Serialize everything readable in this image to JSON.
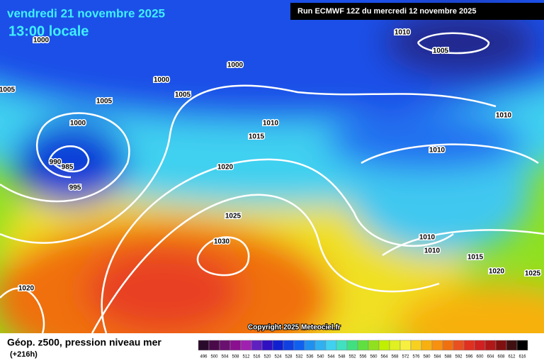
{
  "header": {
    "date": "vendredi 21 novembre 2025",
    "time": "13:00 locale",
    "run": "Run ECMWF 12Z du mercredi 12 novembre 2025"
  },
  "copyright": "Copyright 2025 Meteociel.fr",
  "footer": {
    "title": "Géop. z500, pression niveau mer",
    "subtitle": "(+216h)"
  },
  "isobars": {
    "labels": [
      "1010",
      "1005",
      "1000",
      "1000",
      "1000",
      "1005",
      "1005",
      "1005",
      "1000",
      "1010",
      "1010",
      "1015",
      "990",
      "985",
      "995",
      "1020",
      "1010",
      "1025",
      "1030",
      "1010",
      "1010",
      "1015",
      "1020",
      "1025",
      "1020"
    ]
  },
  "legend": {
    "labels": [
      "496",
      "500",
      "504",
      "508",
      "512",
      "516",
      "520",
      "524",
      "528",
      "532",
      "536",
      "540",
      "544",
      "548",
      "552",
      "556",
      "560",
      "564",
      "568",
      "572",
      "576",
      "580",
      "584",
      "588",
      "592",
      "596",
      "600",
      "604",
      "608",
      "612",
      "616"
    ],
    "colors": [
      "#2a0a2a",
      "#4a0a4a",
      "#6a1070",
      "#8a1090",
      "#a020b0",
      "#6020c0",
      "#3010c0",
      "#1020d0",
      "#1040e0",
      "#1060f0",
      "#2090f0",
      "#30b0f0",
      "#40d0f0",
      "#40e0c0",
      "#40e080",
      "#60e040",
      "#90e020",
      "#c0f000",
      "#e0f020",
      "#f8f040",
      "#f8d020",
      "#f8b010",
      "#f89010",
      "#f07010",
      "#e85020",
      "#e03020",
      "#d02020",
      "#b01818",
      "#801010",
      "#401010",
      "#000000"
    ]
  }
}
